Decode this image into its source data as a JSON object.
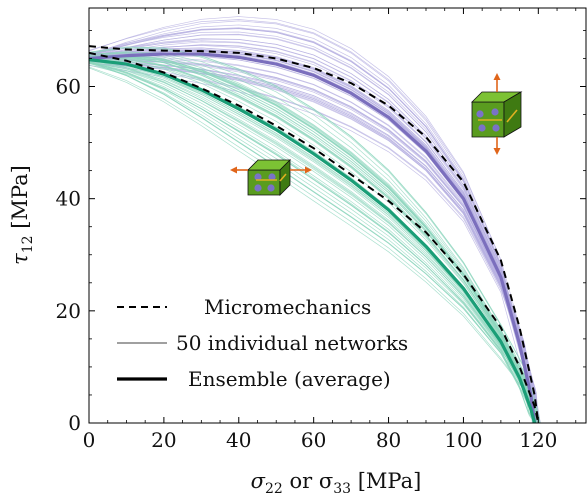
{
  "chart_data": {
    "type": "line",
    "title": "",
    "xlabel_main": "σ",
    "xlabel_sub1": "22",
    "xlabel_mid": " or σ",
    "xlabel_sub2": "33",
    "xlabel_unit": " [MPa]",
    "ylabel_main": "τ",
    "ylabel_sub": "12",
    "ylabel_unit": " [MPa]",
    "xlim": [
      0,
      133
    ],
    "ylim": [
      0,
      74
    ],
    "x_ticks": [
      0,
      20,
      40,
      60,
      80,
      100,
      120
    ],
    "y_ticks": [
      0,
      20,
      40,
      60
    ],
    "grid": false,
    "legend": {
      "position": "bottom-left",
      "entries": [
        {
          "label": "Micromechanics",
          "style": "dashed"
        },
        {
          "label": "50 individual networks",
          "style": "thin"
        },
        {
          "label": "Ensemble (average)",
          "style": "thick"
        }
      ]
    },
    "colors": {
      "purple": "#7b6fbd",
      "purple_light": "#b4aee0",
      "green": "#1a9e77",
      "green_light": "#8ed6bd",
      "dashed": "#000000",
      "cube_face": "#5a9c1f",
      "cube_top": "#7cc234",
      "cube_side": "#3f7a12",
      "arrow": "#e0651a",
      "dot": "#7a72c8"
    },
    "series": [
      {
        "name": "Micromechanics",
        "group": "upper",
        "style": "dashed",
        "x": [
          0,
          10,
          20,
          30,
          40,
          50,
          60,
          70,
          80,
          90,
          100,
          110,
          115,
          119,
          120
        ],
        "y": [
          67.2,
          66.6,
          66.4,
          66.3,
          66.0,
          65.0,
          63.3,
          60.6,
          56.6,
          51.0,
          43.0,
          29.0,
          17.0,
          5.0,
          0
        ]
      },
      {
        "name": "Micromechanics",
        "group": "lower",
        "style": "dashed",
        "x": [
          0,
          10,
          20,
          30,
          40,
          50,
          60,
          70,
          80,
          90,
          100,
          110,
          115,
          119,
          120
        ],
        "y": [
          66.0,
          64.6,
          62.5,
          59.7,
          56.6,
          53.0,
          49.0,
          44.3,
          39.6,
          34.0,
          26.5,
          17.0,
          10.0,
          3.0,
          0
        ]
      },
      {
        "name": "Ensemble (average)",
        "group": "upper",
        "style": "thick",
        "color": "purple",
        "x": [
          0,
          10,
          20,
          30,
          40,
          50,
          60,
          70,
          80,
          90,
          100,
          110,
          115,
          118,
          119
        ],
        "y": [
          65.0,
          65.5,
          65.8,
          65.8,
          65.2,
          64.0,
          62.0,
          58.8,
          54.5,
          48.5,
          40.0,
          26.0,
          14.0,
          5.0,
          0
        ]
      },
      {
        "name": "Ensemble (average)",
        "group": "lower",
        "style": "thick",
        "color": "green",
        "x": [
          0,
          10,
          20,
          30,
          40,
          50,
          60,
          70,
          80,
          90,
          100,
          110,
          115,
          118,
          119
        ],
        "y": [
          64.8,
          64.0,
          62.2,
          59.4,
          56.0,
          52.3,
          48.0,
          43.3,
          38.0,
          31.5,
          24.0,
          14.5,
          8.0,
          2.5,
          0
        ]
      }
    ]
  }
}
